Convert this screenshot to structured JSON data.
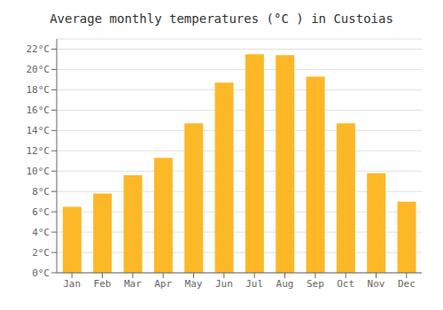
{
  "chart_data": {
    "type": "bar",
    "title": "Average monthly temperatures (°C ) in Custoias",
    "categories": [
      "Jan",
      "Feb",
      "Mar",
      "Apr",
      "May",
      "Jun",
      "Jul",
      "Aug",
      "Sep",
      "Oct",
      "Nov",
      "Dec"
    ],
    "values": [
      6.5,
      7.8,
      9.6,
      11.3,
      14.7,
      18.7,
      21.5,
      21.4,
      19.3,
      14.7,
      9.8,
      7.0
    ],
    "color": "#FDB827",
    "ylim": [
      0,
      23
    ],
    "yticks": [
      {
        "value": 0,
        "label": "0°C"
      },
      {
        "value": 2,
        "label": "2°C"
      },
      {
        "value": 4,
        "label": "4°C"
      },
      {
        "value": 6,
        "label": "6°C"
      },
      {
        "value": 8,
        "label": "8°C"
      },
      {
        "value": 10,
        "label": "10°C"
      },
      {
        "value": 12,
        "label": "12°C"
      },
      {
        "value": 14,
        "label": "14°C"
      },
      {
        "value": 16,
        "label": "16°C"
      },
      {
        "value": 18,
        "label": "18°C"
      },
      {
        "value": 20,
        "label": "20°C"
      },
      {
        "value": 22,
        "label": "22°C"
      }
    ],
    "grid": true
  }
}
